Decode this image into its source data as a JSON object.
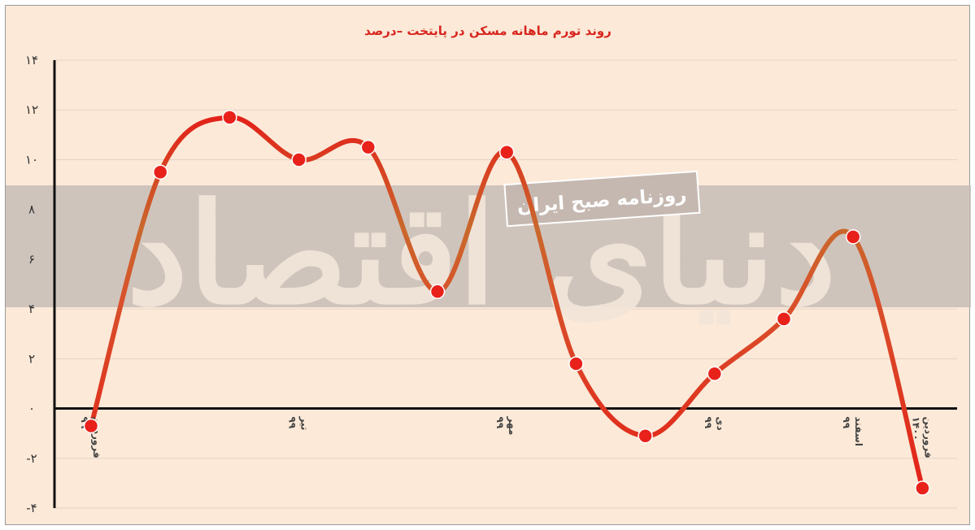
{
  "chart_data": {
    "type": "line",
    "title": "روند تورم ماهانه مسکن در پایتخت –درصد",
    "xlabel": "",
    "ylabel": "",
    "ylim": [
      -4,
      14
    ],
    "yticks": [
      {
        "value": 14,
        "label": "۱۴"
      },
      {
        "value": 12,
        "label": "۱۲"
      },
      {
        "value": 10,
        "label": "۱۰"
      },
      {
        "value": 8,
        "label": "۸"
      },
      {
        "value": 6,
        "label": "۶"
      },
      {
        "value": 4,
        "label": "۴"
      },
      {
        "value": 2,
        "label": "۲"
      },
      {
        "value": 0,
        "label": "۰"
      },
      {
        "value": -2,
        "label": "-۲"
      },
      {
        "value": -4,
        "label": "-۴"
      }
    ],
    "x_labels": [
      {
        "index": 0,
        "line1": "فروردین",
        "line2": "۹۹"
      },
      {
        "index": 3,
        "line1": "تیر",
        "line2": "۹۹"
      },
      {
        "index": 6,
        "line1": "مهر",
        "line2": "۹۹"
      },
      {
        "index": 9,
        "line1": "دی",
        "line2": "۹۹"
      },
      {
        "index": 11,
        "line1": "اسفند",
        "line2": "۹۹"
      },
      {
        "index": 12,
        "line1": "فروردین",
        "line2": "۱۴۰۰"
      }
    ],
    "series": [
      {
        "x": [
          0,
          1,
          2,
          3,
          4,
          5,
          6,
          7,
          8,
          9,
          10,
          11,
          12
        ],
        "values": [
          -0.7,
          9.5,
          11.7,
          10.0,
          10.5,
          4.7,
          10.3,
          1.8,
          -1.1,
          1.4,
          3.6,
          6.9,
          -3.2
        ]
      }
    ],
    "grid": true,
    "colors": {
      "line": "#e32119",
      "line_highlight": "#c9682c",
      "marker": "#e8221b",
      "background": "#fce9d8",
      "band": "#c7bdb7"
    },
    "watermark": {
      "label": "روزنامه صبح ایران",
      "logo_text": "دنیای اقتصاد"
    }
  }
}
